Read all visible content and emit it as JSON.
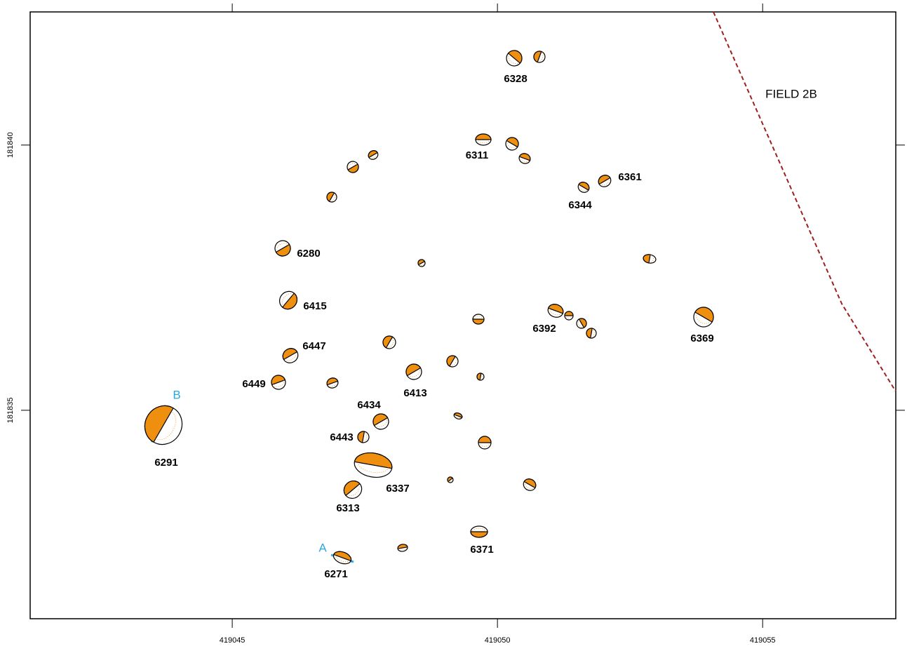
{
  "map": {
    "xlim": [
      419041.19,
      419057.51
    ],
    "ylim": [
      181831.07,
      181842.51
    ],
    "xticks": [
      419045,
      419050,
      419055
    ],
    "yticks": [
      181835,
      181840
    ]
  },
  "field_label": "FIELD 2B",
  "section_labels": [
    "A",
    "B"
  ],
  "features": [
    "6328",
    "6311",
    "6361",
    "6344",
    "6280",
    "6415",
    "6392",
    "6369",
    "6447",
    "6413",
    "6449",
    "6434",
    "6443",
    "6291",
    "6337",
    "6313",
    "6371",
    "6271"
  ]
}
